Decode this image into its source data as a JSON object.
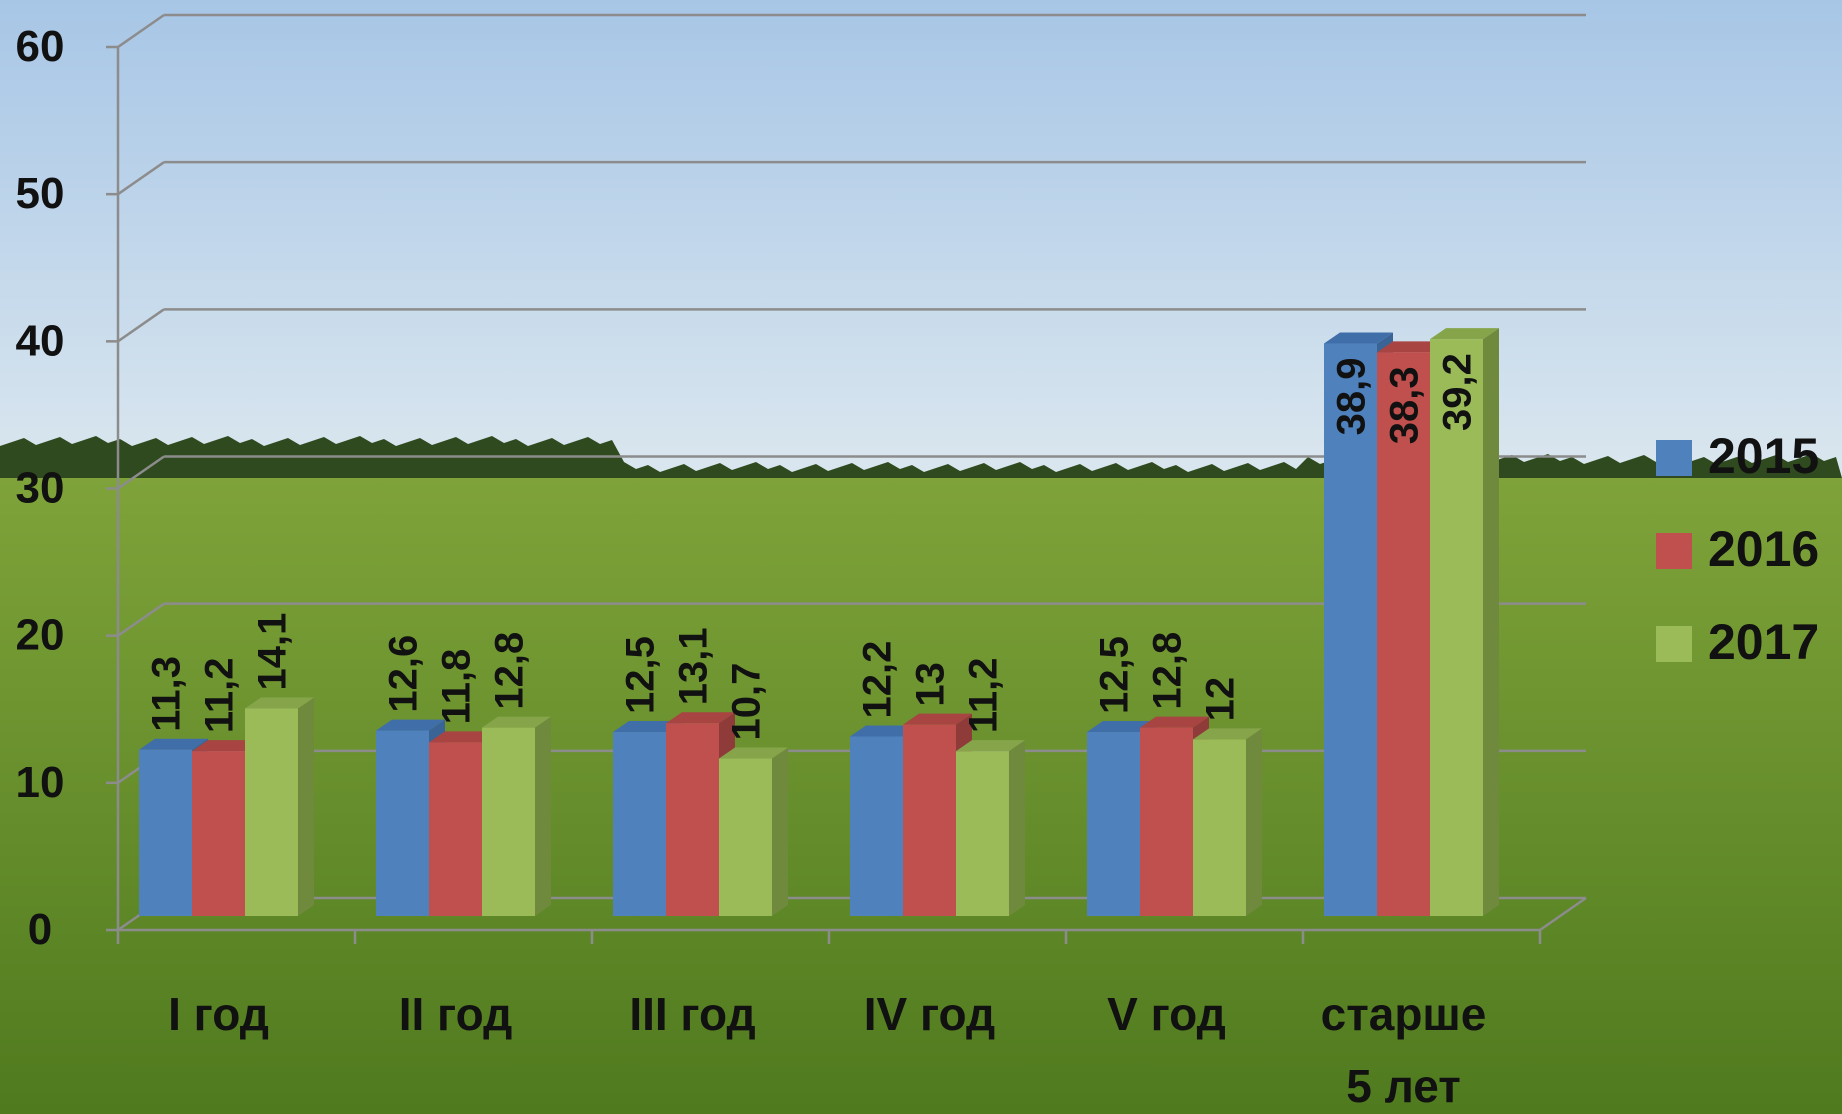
{
  "chart_data": {
    "type": "bar",
    "title": "",
    "xlabel": "",
    "ylabel": "",
    "categories": [
      [
        "I год"
      ],
      [
        "II год"
      ],
      [
        "III год"
      ],
      [
        "IV год"
      ],
      [
        "V год"
      ],
      [
        "старше",
        "5 лет"
      ]
    ],
    "series": [
      {
        "name": "2015",
        "color": "#4f81bd",
        "side_color": "#3a6496",
        "top_color": "#3f6ea8",
        "values": [
          11.3,
          12.6,
          12.5,
          12.2,
          12.5,
          38.9
        ],
        "labels": [
          "11,3",
          "12,6",
          "12,5",
          "12,2",
          "12,5",
          "38,9"
        ]
      },
      {
        "name": "2016",
        "color": "#c0504d",
        "side_color": "#8f3b39",
        "top_color": "#a84442",
        "values": [
          11.2,
          11.8,
          13.1,
          13.0,
          12.8,
          38.3
        ],
        "labels": [
          "11,2",
          "11,8",
          "13,1",
          "13",
          "12,8",
          "38,3"
        ]
      },
      {
        "name": "2017",
        "color": "#9bbb59",
        "side_color": "#6f8a3c",
        "top_color": "#86a54a",
        "values": [
          14.1,
          12.8,
          10.7,
          11.2,
          12.0,
          39.2
        ],
        "labels": [
          "14,1",
          "12,8",
          "10,7",
          "11,2",
          "12",
          "39,2"
        ]
      }
    ],
    "ylim": [
      0,
      60
    ],
    "y_ticks": [
      "0",
      "10",
      "20",
      "30",
      "40",
      "50",
      "60"
    ],
    "grid": true,
    "legend_position": "right",
    "background": {
      "sky_top": "#a7c6e6",
      "sky_bottom": "#dbe7ef",
      "horizon": "#2f4a1e",
      "field_top": "#7fa33a",
      "field_bottom": "#4f7a1e"
    }
  }
}
